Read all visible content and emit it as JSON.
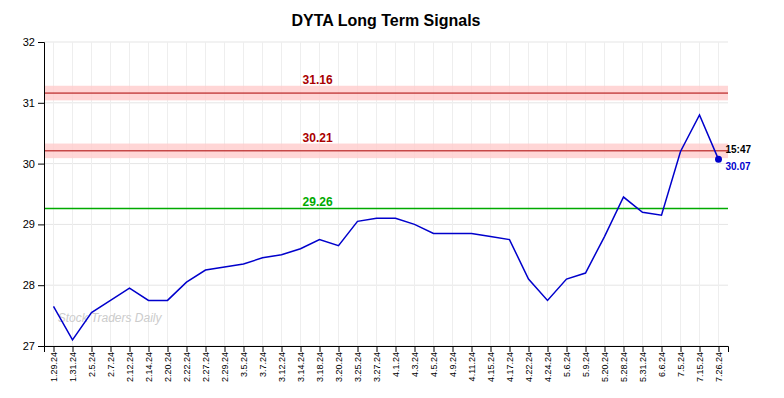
{
  "chart_data": {
    "type": "line",
    "title": "DYTA Long Term Signals",
    "categories": [
      "1.29.24",
      "1.31.24",
      "2.5.24",
      "2.7.24",
      "2.12.24",
      "2.14.24",
      "2.20.24",
      "2.22.24",
      "2.27.24",
      "2.29.24",
      "3.5.24",
      "3.7.24",
      "3.12.24",
      "3.14.24",
      "3.18.24",
      "3.20.24",
      "3.25.24",
      "3.27.24",
      "4.1.24",
      "4.3.24",
      "4.5.24",
      "4.9.24",
      "4.11.24",
      "4.15.24",
      "4.17.24",
      "4.22.24",
      "4.24.24",
      "5.6.24",
      "5.9.24",
      "5.20.24",
      "5.28.24",
      "5.31.24",
      "6.6.24",
      "7.5.24",
      "7.15.24",
      "7.26.24"
    ],
    "values": [
      27.65,
      27.1,
      27.55,
      27.75,
      27.95,
      27.75,
      27.75,
      28.05,
      28.25,
      28.3,
      28.35,
      28.45,
      28.5,
      28.6,
      28.75,
      28.65,
      29.05,
      29.1,
      29.1,
      29.0,
      28.85,
      28.85,
      28.85,
      28.8,
      28.75,
      28.1,
      27.75,
      28.1,
      28.2,
      28.8,
      29.45,
      29.2,
      29.15,
      30.2,
      30.8,
      30.07
    ],
    "color": "#0000cc",
    "ylim": [
      27,
      32
    ],
    "yticks": [
      27,
      28,
      29,
      30,
      31,
      32
    ],
    "grid": true,
    "reference_lines": [
      {
        "value": 31.16,
        "label": "31.16",
        "color": "#aa0000",
        "band": [
          31.04,
          31.28
        ],
        "band_color": "#ffcccc"
      },
      {
        "value": 30.21,
        "label": "30.21",
        "color": "#aa0000",
        "band": [
          30.09,
          30.33
        ],
        "band_color": "#ffcccc"
      },
      {
        "value": 29.26,
        "label": "29.26",
        "color": "#00aa00"
      }
    ],
    "last_point": {
      "value": 30.07,
      "time_label": "15:47",
      "price_label": "30.07"
    },
    "watermark": "Stock Traders Daily"
  }
}
